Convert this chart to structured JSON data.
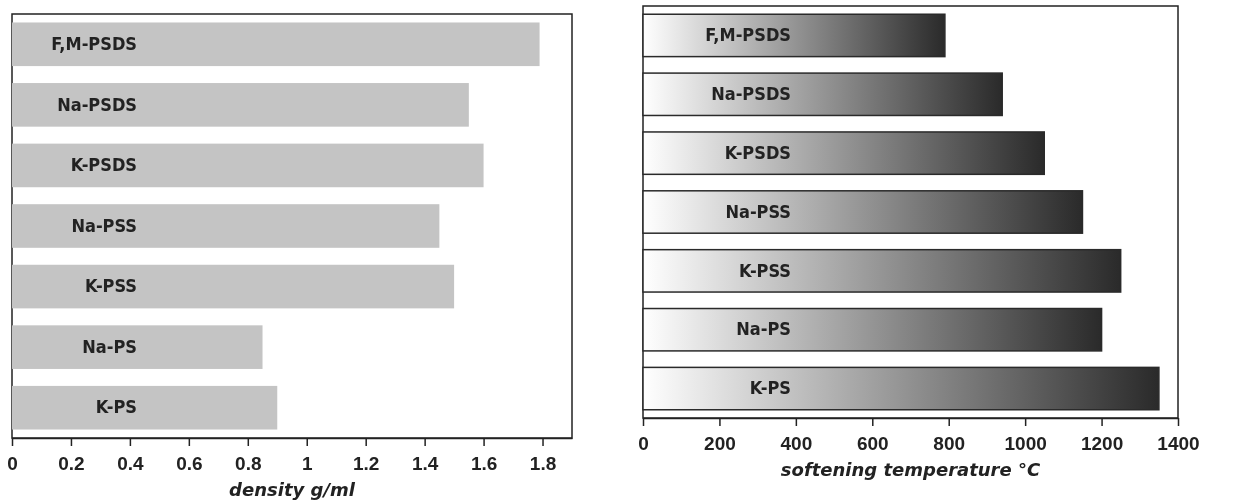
{
  "chart_data": [
    {
      "type": "bar",
      "orientation": "horizontal",
      "xlabel": "density g/ml",
      "categories": [
        "F,M-PSDS",
        "Na-PSDS",
        "K-PSDS",
        "Na-PSS",
        "K-PSS",
        "Na-PS",
        "K-PS"
      ],
      "values": [
        1.79,
        1.55,
        1.6,
        1.45,
        1.5,
        0.85,
        0.9
      ],
      "color": "#c4c4c4",
      "xlim": [
        0,
        1.9
      ],
      "xticks": [
        0,
        {
          "value": 0.2,
          "label": "0.2"
        },
        {
          "value": 0.4,
          "label": "0.4"
        },
        {
          "value": 0.6,
          "label": "0.6"
        },
        {
          "value": 0.8,
          "label": "0.8"
        },
        1,
        {
          "value": 1.2,
          "label": "1.2"
        },
        {
          "value": 1.4,
          "label": "1.4"
        },
        {
          "value": 1.6,
          "label": "1.6"
        },
        {
          "value": 1.8,
          "label": "1.8"
        }
      ],
      "grid": false
    },
    {
      "type": "bar",
      "orientation": "horizontal",
      "xlabel": "softening temperature °C",
      "categories": [
        "F,M-PSDS",
        "Na-PSDS",
        "K-PSDS",
        "Na-PSS",
        "K-PSS",
        "Na-PS",
        "K-PS"
      ],
      "values": [
        790,
        940,
        1050,
        1150,
        1250,
        1200,
        1350
      ],
      "color": "#2a2a2a",
      "xlim": [
        0,
        1400
      ],
      "xticks": [
        0,
        200,
        400,
        600,
        800,
        1000,
        1200,
        1400
      ],
      "grid": false
    }
  ]
}
